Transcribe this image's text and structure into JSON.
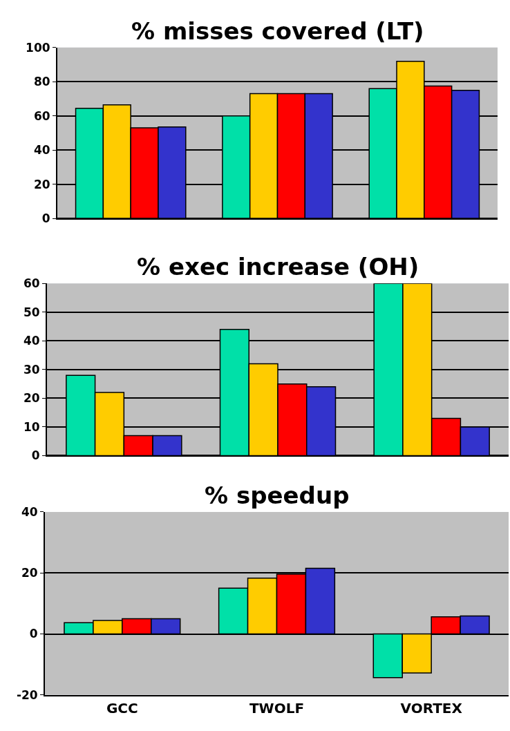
{
  "chart_data": [
    {
      "type": "bar",
      "title": "% misses covered (LT)",
      "categories": [
        null,
        null,
        null
      ],
      "ylim": [
        0,
        100
      ],
      "yticks": [
        0,
        20,
        40,
        60,
        80,
        100
      ],
      "grid": "y",
      "series": [
        {
          "color": "#00e0a8",
          "values": [
            64.5,
            60,
            76
          ]
        },
        {
          "color": "#ffcc00",
          "values": [
            66.5,
            73,
            92
          ]
        },
        {
          "color": "#ff0000",
          "values": [
            53,
            73,
            77.5
          ]
        },
        {
          "color": "#3333cc",
          "values": [
            53.5,
            73,
            75
          ]
        }
      ]
    },
    {
      "type": "bar",
      "title": "% exec increase (OH)",
      "categories": [
        null,
        null,
        null
      ],
      "ylim": [
        0,
        60
      ],
      "yticks": [
        0,
        10,
        20,
        30,
        40,
        50,
        60
      ],
      "grid": "y",
      "series": [
        {
          "color": "#00e0a8",
          "values": [
            28,
            44,
            60
          ]
        },
        {
          "color": "#ffcc00",
          "values": [
            22,
            32,
            60
          ]
        },
        {
          "color": "#ff0000",
          "values": [
            7,
            25,
            13
          ]
        },
        {
          "color": "#3333cc",
          "values": [
            7,
            24,
            10
          ]
        }
      ]
    },
    {
      "type": "bar",
      "title": "% speedup",
      "categories": [
        "GCC",
        "TWOLF",
        "VORTEX"
      ],
      "ylim": [
        -20,
        40
      ],
      "yticks": [
        -20,
        0,
        20,
        40
      ],
      "grid": "y",
      "series": [
        {
          "color": "#00e0a8",
          "values": [
            3.7,
            15,
            -14.3
          ]
        },
        {
          "color": "#ffcc00",
          "values": [
            4.4,
            18.3,
            -12.8
          ]
        },
        {
          "color": "#ff0000",
          "values": [
            5,
            19.6,
            5.6
          ]
        },
        {
          "color": "#3333cc",
          "values": [
            5,
            21.5,
            5.9
          ]
        }
      ]
    }
  ]
}
